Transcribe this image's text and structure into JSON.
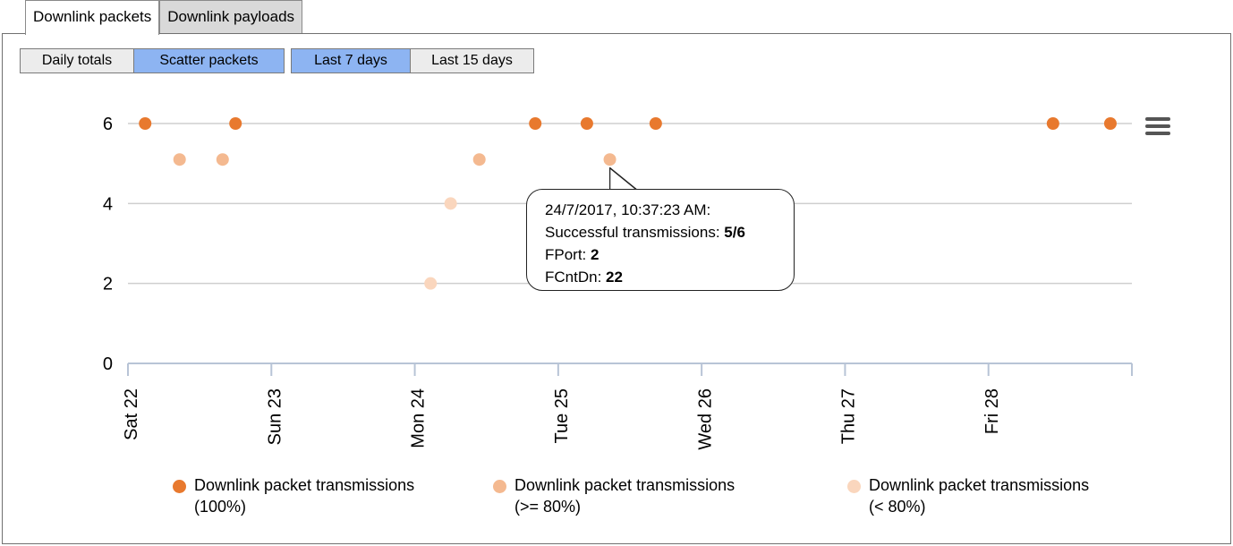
{
  "tabs": [
    {
      "label": "Downlink packets",
      "active": true
    },
    {
      "label": "Downlink payloads",
      "active": false
    }
  ],
  "view_buttons": [
    {
      "label": "Daily totals",
      "selected": false
    },
    {
      "label": "Scatter packets",
      "selected": true
    }
  ],
  "range_buttons": [
    {
      "label": "Last 7 days",
      "selected": true
    },
    {
      "label": "Last 15 days",
      "selected": false
    }
  ],
  "menu_icon": "hamburger-menu-icon",
  "chart_data": {
    "type": "scatter",
    "ylim": [
      0,
      6
    ],
    "yticks": [
      "0",
      "2",
      "4",
      "6"
    ],
    "categories": [
      "Sat 22",
      "Sun 23",
      "Mon 24",
      "Tue 25",
      "Wed 26",
      "Thu 27",
      "Fri 28"
    ],
    "grid": true,
    "series": [
      {
        "name": "Downlink packet transmissions (100%)",
        "color": "#e8792e",
        "points": [
          [
            0.12,
            6
          ],
          [
            0.75,
            6
          ],
          [
            2.84,
            6
          ],
          [
            3.2,
            6
          ],
          [
            3.68,
            6
          ],
          [
            6.45,
            6
          ],
          [
            6.85,
            6
          ]
        ]
      },
      {
        "name": "Downlink packet transmissions (>= 80%)",
        "color": "#f4b990",
        "points": [
          [
            0.36,
            5.1
          ],
          [
            0.66,
            5.1
          ],
          [
            2.45,
            5.1
          ],
          [
            3.36,
            5.1
          ]
        ]
      },
      {
        "name": "Downlink packet transmissions (< 80%)",
        "color": "#fad6bd",
        "points": [
          [
            2.25,
            4
          ],
          [
            2.11,
            2
          ]
        ]
      }
    ]
  },
  "legend": [
    {
      "line1": "Downlink packet transmissions",
      "line2": "(100%)",
      "color": "#e8792e"
    },
    {
      "line1": "Downlink packet transmissions",
      "line2": "(>= 80%)",
      "color": "#f4b990"
    },
    {
      "line1": "Downlink packet transmissions",
      "line2": "(< 80%)",
      "color": "#fad6bd"
    }
  ],
  "tooltip": {
    "timestamp": "24/7/2017, 10:37:23 AM:",
    "success_label": "Successful transmissions: ",
    "success_value": "5/6",
    "fport_label": "FPort: ",
    "fport_value": "2",
    "fcnt_label": "FCntDn: ",
    "fcnt_value": "22"
  }
}
